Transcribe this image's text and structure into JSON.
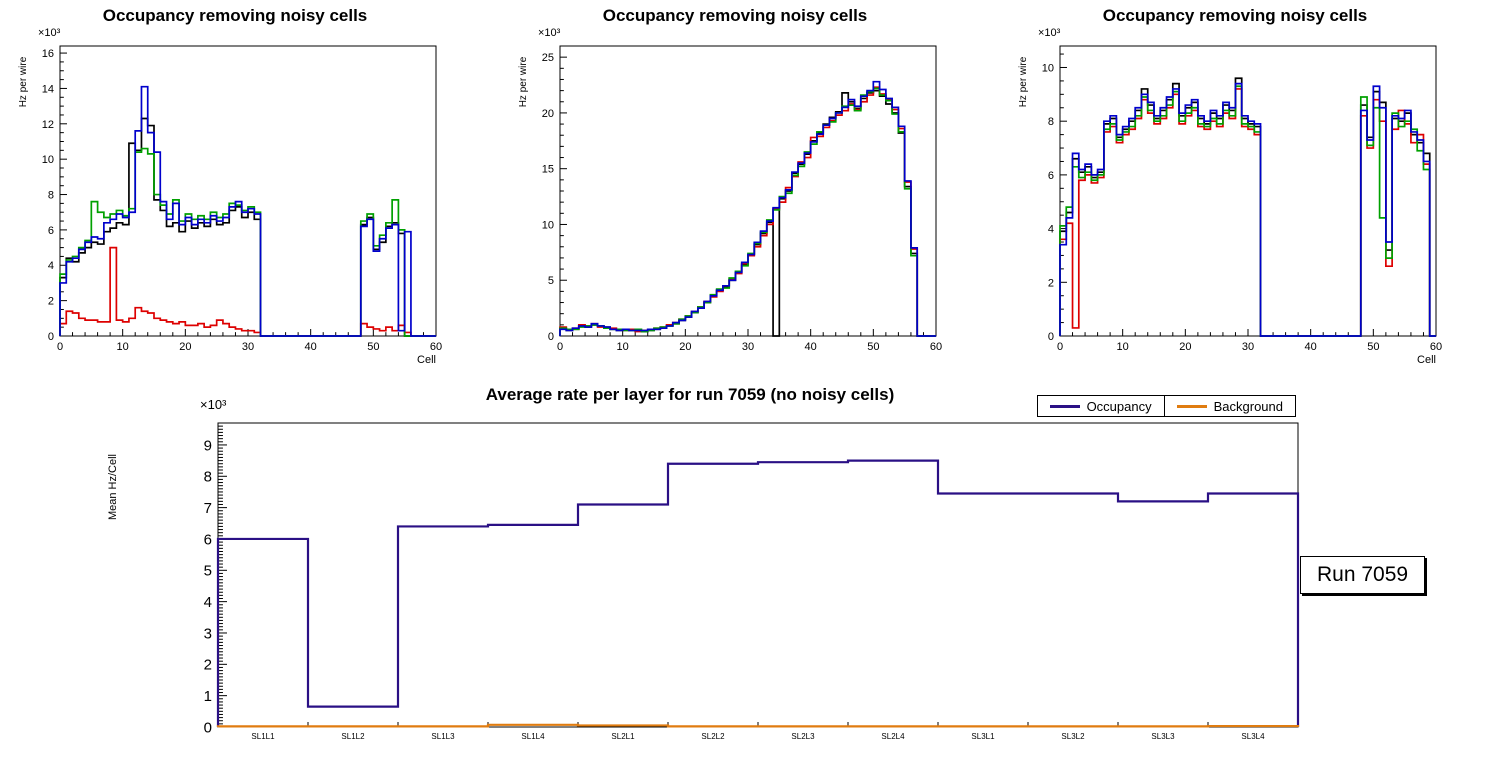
{
  "run_label": "Run 7059",
  "chart_data": [
    {
      "type": "line",
      "subtype": "step-histogram",
      "title": "Occupancy removing noisy cells",
      "xlabel": "Cell",
      "ylabel": "Hz per wire",
      "y_exponent": "×10³",
      "xlim": [
        0,
        60
      ],
      "ylim": [
        0,
        16.4
      ],
      "xticks": [
        0,
        10,
        20,
        30,
        40,
        50,
        60
      ],
      "yticks": [
        0,
        2,
        4,
        6,
        8,
        10,
        12,
        14,
        16
      ],
      "grid": false,
      "legend_position": "none",
      "series": [
        {
          "name": "black",
          "color": "#000000",
          "values": [
            3.3,
            4.4,
            4.2,
            4.7,
            5.0,
            5.3,
            5.2,
            5.9,
            6.1,
            6.4,
            6.3,
            10.9,
            10.5,
            12.3,
            11.9,
            7.7,
            7.1,
            6.2,
            6.4,
            5.9,
            6.5,
            6.1,
            6.4,
            6.2,
            6.6,
            6.3,
            6.4,
            7.1,
            7.3,
            6.7,
            7.0,
            6.6,
            0,
            0,
            0,
            0,
            0,
            0,
            0,
            0,
            0,
            0,
            0,
            0,
            0,
            0,
            0,
            0,
            6.3,
            6.7,
            4.9,
            5.3,
            6.2,
            6.4,
            5.8,
            0,
            0,
            0,
            0,
            0
          ]
        },
        {
          "name": "red",
          "color": "#dd0000",
          "values": [
            0.7,
            1.4,
            1.3,
            1.0,
            0.9,
            0.9,
            0.8,
            0.8,
            5.0,
            0.9,
            0.8,
            1.0,
            1.6,
            1.4,
            1.3,
            1.0,
            0.9,
            0.8,
            0.7,
            0.8,
            0.6,
            0.6,
            0.7,
            0.5,
            0.6,
            0.9,
            0.7,
            0.5,
            0.4,
            0.3,
            0.3,
            0.2,
            0,
            0,
            0,
            0,
            0,
            0,
            0,
            0,
            0,
            0,
            0,
            0,
            0,
            0,
            0,
            0,
            0.7,
            0.5,
            0.4,
            0.3,
            0.5,
            0.3,
            0.6,
            0.2,
            0,
            0,
            0,
            0
          ]
        },
        {
          "name": "green",
          "color": "#00a000",
          "values": [
            3.5,
            4.3,
            4.5,
            5.0,
            5.4,
            7.6,
            7.0,
            6.7,
            6.9,
            7.1,
            6.8,
            7.2,
            10.4,
            10.6,
            10.3,
            8.0,
            7.4,
            6.9,
            7.7,
            6.5,
            6.9,
            6.6,
            6.8,
            6.6,
            7.0,
            6.7,
            6.9,
            7.5,
            7.4,
            7.1,
            7.3,
            7.0,
            0,
            0,
            0,
            0,
            0,
            0,
            0,
            0,
            0,
            0,
            0,
            0,
            0,
            0,
            0,
            0,
            6.5,
            6.9,
            5.1,
            5.7,
            6.4,
            7.7,
            6.0,
            0,
            0,
            0,
            0,
            0
          ]
        },
        {
          "name": "blue",
          "color": "#0000cc",
          "values": [
            3.0,
            4.2,
            4.4,
            4.9,
            5.3,
            5.6,
            5.5,
            6.4,
            6.6,
            6.9,
            6.7,
            7.0,
            11.6,
            14.1,
            11.5,
            10.4,
            7.6,
            6.6,
            7.5,
            6.3,
            6.7,
            6.3,
            6.6,
            6.4,
            6.8,
            6.5,
            6.7,
            7.3,
            7.6,
            7.0,
            7.2,
            6.9,
            0,
            0,
            0,
            0,
            0,
            0,
            0,
            0,
            0,
            0,
            0,
            0,
            0,
            0,
            0,
            0,
            6.2,
            6.6,
            4.8,
            5.5,
            6.1,
            6.3,
            0.3,
            5.9,
            0,
            0,
            0,
            0
          ]
        }
      ]
    },
    {
      "type": "line",
      "subtype": "step-histogram",
      "title": "Occupancy removing noisy cells",
      "xlabel": "",
      "ylabel": "Hz per wire",
      "y_exponent": "×10³",
      "xlim": [
        0,
        60
      ],
      "ylim": [
        0,
        26
      ],
      "xticks": [
        0,
        10,
        20,
        30,
        40,
        50,
        60
      ],
      "yticks": [
        0,
        5,
        10,
        15,
        20,
        25
      ],
      "grid": false,
      "legend_position": "none",
      "series": [
        {
          "name": "black",
          "color": "#000000",
          "values": [
            0.7,
            0.5,
            0.6,
            0.9,
            0.8,
            1.0,
            0.9,
            0.8,
            0.6,
            0.5,
            0.6,
            0.5,
            0.5,
            0.4,
            0.5,
            0.6,
            0.7,
            0.9,
            1.1,
            1.4,
            1.7,
            2.1,
            2.5,
            3.0,
            3.6,
            4.1,
            4.4,
            5.0,
            5.7,
            6.4,
            7.3,
            8.2,
            9.2,
            10.2,
            0,
            12.3,
            13.0,
            14.6,
            15.4,
            16.3,
            17.5,
            18.2,
            19.0,
            19.6,
            20.1,
            21.8,
            21.0,
            20.4,
            21.3,
            21.8,
            22.0,
            21.5,
            20.8,
            20.0,
            18.2,
            13.4,
            7.4,
            0,
            0,
            0
          ]
        },
        {
          "name": "red",
          "color": "#dd0000",
          "values": [
            0.8,
            0.6,
            0.7,
            1.0,
            0.9,
            1.1,
            0.8,
            0.7,
            0.7,
            0.6,
            0.5,
            0.6,
            0.4,
            0.5,
            0.6,
            0.7,
            0.8,
            1.0,
            1.2,
            1.5,
            1.8,
            2.2,
            2.6,
            3.1,
            3.5,
            4.0,
            4.5,
            5.1,
            5.6,
            6.5,
            7.2,
            8.0,
            9.0,
            10.0,
            11.4,
            12.0,
            13.3,
            14.3,
            15.6,
            16.0,
            17.8,
            17.9,
            18.7,
            19.3,
            19.8,
            20.2,
            20.8,
            20.3,
            21.0,
            21.6,
            22.3,
            21.7,
            21.2,
            20.3,
            18.6,
            13.8,
            7.8,
            0,
            0,
            0
          ]
        },
        {
          "name": "green",
          "color": "#00a000",
          "values": [
            0.7,
            0.6,
            0.6,
            0.8,
            0.9,
            1.0,
            0.9,
            0.7,
            0.6,
            0.6,
            0.5,
            0.5,
            0.6,
            0.4,
            0.5,
            0.7,
            0.8,
            0.9,
            1.1,
            1.5,
            1.8,
            2.1,
            2.6,
            3.0,
            3.7,
            4.2,
            4.3,
            5.2,
            5.8,
            6.3,
            7.4,
            8.3,
            9.3,
            10.4,
            11.3,
            12.5,
            12.8,
            14.4,
            15.2,
            16.5,
            17.2,
            18.3,
            18.9,
            19.2,
            20.0,
            20.6,
            20.7,
            20.2,
            21.6,
            21.9,
            22.2,
            21.6,
            21.1,
            19.9,
            18.3,
            13.2,
            7.2,
            0,
            0,
            0
          ]
        },
        {
          "name": "blue",
          "color": "#0000cc",
          "values": [
            0.6,
            0.5,
            0.7,
            0.9,
            0.8,
            1.1,
            0.9,
            0.8,
            0.6,
            0.5,
            0.6,
            0.5,
            0.5,
            0.5,
            0.6,
            0.6,
            0.7,
            0.9,
            1.2,
            1.4,
            1.7,
            2.2,
            2.5,
            3.1,
            3.6,
            4.1,
            4.5,
            5.0,
            5.7,
            6.6,
            7.3,
            8.4,
            9.4,
            10.3,
            11.5,
            12.4,
            13.1,
            14.7,
            15.5,
            16.4,
            17.4,
            18.1,
            18.9,
            19.5,
            20.0,
            20.5,
            21.2,
            20.6,
            21.5,
            22.0,
            22.8,
            22.1,
            21.3,
            20.5,
            18.8,
            13.9,
            7.9,
            0,
            0,
            0
          ]
        }
      ]
    },
    {
      "type": "line",
      "subtype": "step-histogram",
      "title": "Occupancy removing noisy cells",
      "xlabel": "Cell",
      "ylabel": "Hz per wire",
      "y_exponent": "×10³",
      "xlim": [
        0,
        60
      ],
      "ylim": [
        0,
        10.8
      ],
      "xticks": [
        0,
        10,
        20,
        30,
        40,
        50,
        60
      ],
      "yticks": [
        0,
        2,
        4,
        6,
        8,
        10
      ],
      "grid": false,
      "legend_position": "none",
      "series": [
        {
          "name": "black",
          "color": "#000000",
          "values": [
            3.9,
            4.6,
            6.6,
            6.1,
            6.3,
            5.9,
            6.1,
            7.9,
            8.1,
            7.4,
            7.7,
            8.0,
            8.4,
            9.2,
            8.6,
            8.1,
            8.4,
            8.8,
            9.4,
            8.2,
            8.5,
            8.7,
            8.1,
            7.9,
            8.3,
            8.1,
            8.6,
            8.4,
            9.6,
            8.1,
            7.9,
            7.8,
            0,
            0,
            0,
            0,
            0,
            0,
            0,
            0,
            0,
            0,
            0,
            0,
            0,
            0,
            0,
            0,
            8.6,
            7.4,
            9.1,
            8.7,
            3.2,
            8.1,
            8.0,
            8.3,
            7.5,
            7.2,
            6.8,
            0
          ]
        },
        {
          "name": "red",
          "color": "#dd0000",
          "values": [
            3.6,
            4.2,
            0.3,
            5.8,
            6.0,
            5.7,
            5.9,
            7.6,
            7.8,
            7.2,
            7.5,
            7.7,
            8.1,
            8.8,
            8.3,
            7.9,
            8.1,
            8.5,
            9.0,
            7.9,
            8.2,
            8.4,
            7.8,
            7.7,
            8.0,
            7.8,
            8.3,
            8.1,
            9.2,
            7.8,
            7.7,
            7.5,
            0,
            0,
            0,
            0,
            0,
            0,
            0,
            0,
            0,
            0,
            0,
            0,
            0,
            0,
            0,
            0,
            8.2,
            7.0,
            8.8,
            8.0,
            2.6,
            7.7,
            8.4,
            7.9,
            7.2,
            7.5,
            6.4,
            0
          ]
        },
        {
          "name": "green",
          "color": "#00a000",
          "values": [
            4.1,
            4.8,
            6.3,
            5.9,
            6.1,
            5.8,
            6.0,
            7.7,
            7.9,
            7.3,
            7.6,
            7.8,
            8.2,
            8.9,
            8.4,
            8.0,
            8.2,
            8.6,
            9.1,
            8.0,
            8.3,
            8.5,
            7.9,
            7.8,
            8.1,
            7.9,
            8.4,
            8.2,
            9.3,
            7.9,
            7.8,
            7.6,
            0,
            0,
            0,
            0,
            0,
            0,
            0,
            0,
            0,
            0,
            0,
            0,
            0,
            0,
            0,
            0,
            8.9,
            7.1,
            8.5,
            4.4,
            2.9,
            8.3,
            7.8,
            8.0,
            7.7,
            6.9,
            6.2,
            0
          ]
        },
        {
          "name": "blue",
          "color": "#0000cc",
          "values": [
            3.4,
            4.4,
            6.8,
            6.2,
            6.4,
            6.0,
            6.2,
            8.0,
            8.2,
            7.5,
            7.8,
            8.1,
            8.5,
            9.0,
            8.7,
            8.2,
            8.5,
            8.9,
            9.2,
            8.3,
            8.6,
            8.8,
            8.2,
            8.0,
            8.4,
            8.2,
            8.7,
            8.5,
            9.4,
            8.2,
            8.0,
            7.9,
            0,
            0,
            0,
            0,
            0,
            0,
            0,
            0,
            0,
            0,
            0,
            0,
            0,
            0,
            0,
            0,
            8.4,
            7.3,
            9.3,
            8.5,
            3.5,
            8.2,
            8.1,
            8.4,
            7.6,
            7.3,
            6.5,
            0
          ]
        }
      ]
    },
    {
      "type": "line",
      "subtype": "step-category",
      "title": "Average rate per layer for run 7059 (no noisy cells)",
      "xlabel": "",
      "ylabel": "Mean Hz/Cell",
      "y_exponent": "×10³",
      "categories": [
        "SL1L1",
        "SL1L2",
        "SL1L3",
        "SL1L4",
        "SL2L1",
        "SL2L2",
        "SL2L3",
        "SL2L4",
        "SL3L1",
        "SL3L2",
        "SL3L3",
        "SL3L4"
      ],
      "ylim": [
        0,
        9.7
      ],
      "yticks": [
        0,
        1,
        2,
        3,
        4,
        5,
        6,
        7,
        8,
        9
      ],
      "grid": false,
      "legend_position": "top-right",
      "series": [
        {
          "name": "Occupancy",
          "color": "#2a1085",
          "values": [
            6.0,
            0.65,
            6.4,
            6.45,
            7.1,
            8.4,
            8.45,
            8.5,
            7.45,
            7.45,
            7.2,
            7.45
          ]
        },
        {
          "name": "Background",
          "color": "#e07c10",
          "values": [
            0.02,
            0.02,
            0.02,
            0.07,
            0.05,
            0.02,
            0.02,
            0.02,
            0.02,
            0.02,
            0.02,
            0.03
          ]
        }
      ]
    }
  ]
}
